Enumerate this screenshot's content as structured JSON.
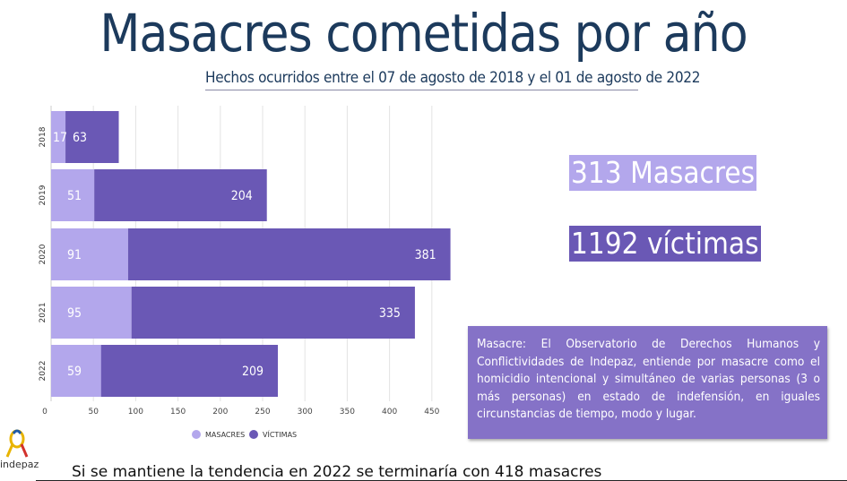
{
  "header": {
    "title": "Masacres cometidas por año",
    "subtitle": "Hechos ocurridos entre el 07 de agosto de 2018 y el 01 de agosto de 2022"
  },
  "stats": {
    "masacres": "313 Masacres",
    "victimas": "1192 víctimas"
  },
  "definition": "Masacre: El Observatorio de Derechos Humanos y Conflictividades de Indepaz, entiende por masacre como el homicidio intencional y simultáneo de varias personas (3 o más personas) en estado de indefensión, en iguales circunstancias de tiempo, modo y lugar.",
  "footer": "Si se mantiene la tendencia en 2022 se terminaría con 418 masacres",
  "logo": {
    "label": "indepaz",
    "icon": "ribbon-icon"
  },
  "colors": {
    "masacres": "#b3a7ec",
    "victimas": "#6a58b5",
    "title": "#1c3a5c",
    "definition_bg": "#8572c7"
  },
  "chart_data": {
    "type": "bar",
    "orientation": "horizontal",
    "stacked": true,
    "categories": [
      "2018",
      "2019",
      "2020",
      "2021",
      "2022"
    ],
    "series": [
      {
        "name": "MASACRES",
        "values": [
          17,
          51,
          91,
          95,
          59
        ]
      },
      {
        "name": "VÍCTIMAS",
        "values": [
          63,
          204,
          381,
          335,
          209
        ]
      }
    ],
    "xticks": [
      0,
      50,
      100,
      150,
      200,
      250,
      300,
      350,
      400,
      450
    ],
    "xlim": [
      0,
      500
    ],
    "grid": true,
    "legend_position": "bottom"
  }
}
